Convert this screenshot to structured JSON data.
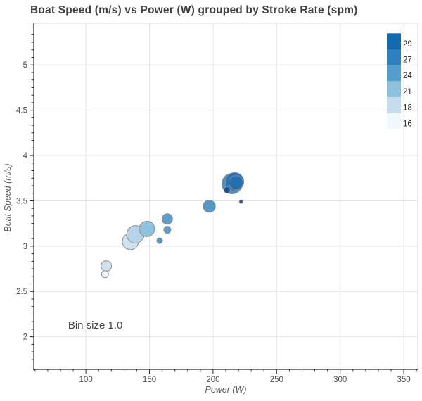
{
  "chart_data": {
    "type": "scatter",
    "title": "Boat Speed (m/s) vs Power (W) grouped by Stroke Rate (spm)",
    "xlabel": "Power (W)",
    "ylabel": "Boat Speed (m/s)",
    "xlim": [
      59,
      361
    ],
    "ylim": [
      1.64,
      5.46
    ],
    "x_ticks": [
      100,
      150,
      200,
      250,
      300,
      350
    ],
    "y_ticks": [
      2,
      2.5,
      3,
      3.5,
      4,
      4.5,
      5
    ],
    "x_minor_step": 10,
    "y_minor_per_unit": 12,
    "grid": true,
    "annotation": {
      "text": "Bin size 1.0",
      "x": 86,
      "y": 2.09
    },
    "legend": {
      "position": "top-right",
      "entries": [
        {
          "label": "29",
          "color": "#146aad"
        },
        {
          "label": "27",
          "color": "#2e80bd"
        },
        {
          "label": "24",
          "color": "#549ecd"
        },
        {
          "label": "21",
          "color": "#8ec1de"
        },
        {
          "label": "18",
          "color": "#c7dcef"
        },
        {
          "label": "16",
          "color": "#f1f7fc"
        }
      ]
    },
    "points": [
      {
        "power": 135,
        "speed": 3.05,
        "stroke_rate": 18,
        "radius_px": 11.5,
        "color": "#cfe2f2"
      },
      {
        "power": 139,
        "speed": 3.13,
        "stroke_rate": 18,
        "radius_px": 12.5,
        "color": "#b7d4ea"
      },
      {
        "power": 148,
        "speed": 3.19,
        "stroke_rate": 21,
        "radius_px": 11.0,
        "color": "#8fc2dd"
      },
      {
        "power": 116,
        "speed": 2.78,
        "stroke_rate": 18,
        "radius_px": 7.5,
        "color": "#cfe0f0"
      },
      {
        "power": 115,
        "speed": 2.69,
        "stroke_rate": 16,
        "radius_px": 5.0,
        "color": "#eff5fb"
      },
      {
        "power": 158,
        "speed": 3.06,
        "stroke_rate": 24,
        "radius_px": 4.0,
        "color": "#4f97c6"
      },
      {
        "power": 164,
        "speed": 3.18,
        "stroke_rate": 24,
        "radius_px": 5.0,
        "color": "#5a9dca"
      },
      {
        "power": 164,
        "speed": 3.3,
        "stroke_rate": 24,
        "radius_px": 7.5,
        "color": "#5b9fcb"
      },
      {
        "power": 197,
        "speed": 3.44,
        "stroke_rate": 24,
        "radius_px": 8.7,
        "color": "#5597c7"
      },
      {
        "power": 215,
        "speed": 3.69,
        "stroke_rate": 24,
        "radius_px": 14.5,
        "color": "#4a90c2"
      },
      {
        "power": 217,
        "speed": 3.71,
        "stroke_rate": 27,
        "radius_px": 13.0,
        "color": "#2a74b5"
      },
      {
        "power": 218,
        "speed": 3.7,
        "stroke_rate": 29,
        "radius_px": 10.0,
        "color": "#2270b2"
      },
      {
        "power": 211,
        "speed": 3.62,
        "stroke_rate": 29,
        "radius_px": 4.5,
        "color": "#15529e"
      },
      {
        "power": 222,
        "speed": 3.49,
        "stroke_rate": 29,
        "radius_px": 2.5,
        "color": "#1563a5"
      }
    ],
    "style": {
      "grid_color": "#e4e4e4",
      "outer_spine_color": "#d9d9d9",
      "axis_color": "#262626",
      "point_outline": "#8e8e8e"
    }
  }
}
